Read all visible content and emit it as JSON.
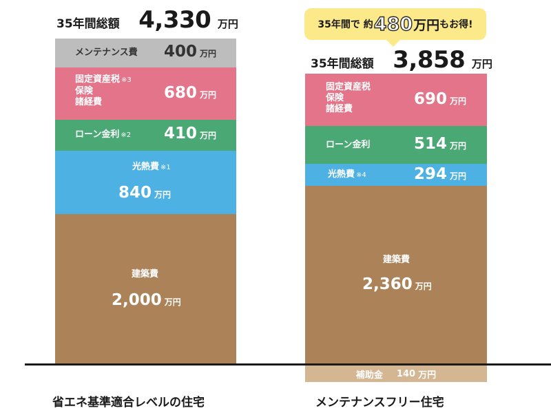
{
  "chart_data": {
    "type": "bar",
    "stacked": true,
    "unit": "万円",
    "bars": [
      {
        "category": "省エネ基準適合レベルの住宅",
        "total_label": "35年間総額",
        "total_value": "4,330",
        "total_unit": "万円",
        "segments": [
          {
            "label": "建築費",
            "note": "",
            "value": 2000,
            "value_text": "2,000",
            "unit": "万円",
            "color": "#ac8259"
          },
          {
            "label": "光熱費",
            "note": "※1",
            "value": 840,
            "value_text": "840",
            "unit": "万円",
            "color": "#4db1e3"
          },
          {
            "label": "ローン金利",
            "note": "※2",
            "value": 410,
            "value_text": "410",
            "unit": "万円",
            "color": "#4aa874"
          },
          {
            "label_lines": [
              "固定資産税",
              "保険",
              "諸経費"
            ],
            "note": "※3",
            "value": 680,
            "value_text": "680",
            "unit": "万円",
            "color": "#e3748a"
          },
          {
            "label": "メンテナンス費",
            "note": "",
            "value": 400,
            "value_text": "400",
            "unit": "万円",
            "color": "#bdbdbd"
          }
        ]
      },
      {
        "category": "メンテナンスフリー住宅",
        "total_label": "35年間総額",
        "total_value": "3,858",
        "total_unit": "万円",
        "segments": [
          {
            "label": "建築費",
            "note": "",
            "value": 2360,
            "value_text": "2,360",
            "unit": "万円",
            "color": "#ac8259"
          },
          {
            "label": "光熱費",
            "note": "※4",
            "value": 294,
            "value_text": "294",
            "unit": "万円",
            "color": "#4db1e3"
          },
          {
            "label": "ローン金利",
            "note": "",
            "value": 514,
            "value_text": "514",
            "unit": "万円",
            "color": "#4aa874"
          },
          {
            "label_lines": [
              "固定資産税",
              "保険",
              "諸経費"
            ],
            "note": "",
            "value": 690,
            "value_text": "690",
            "unit": "万円",
            "color": "#e3748a"
          }
        ],
        "subsidy": {
          "label": "補助金",
          "value": 140,
          "value_text": "140",
          "unit": "万円",
          "color": "#d5b693"
        }
      }
    ],
    "callout": {
      "prefix": "35年間で 約",
      "number": "480",
      "unit": "万円",
      "suffix": "もお得!",
      "color": "#fbe98a"
    },
    "grid": false,
    "legend": "none"
  }
}
